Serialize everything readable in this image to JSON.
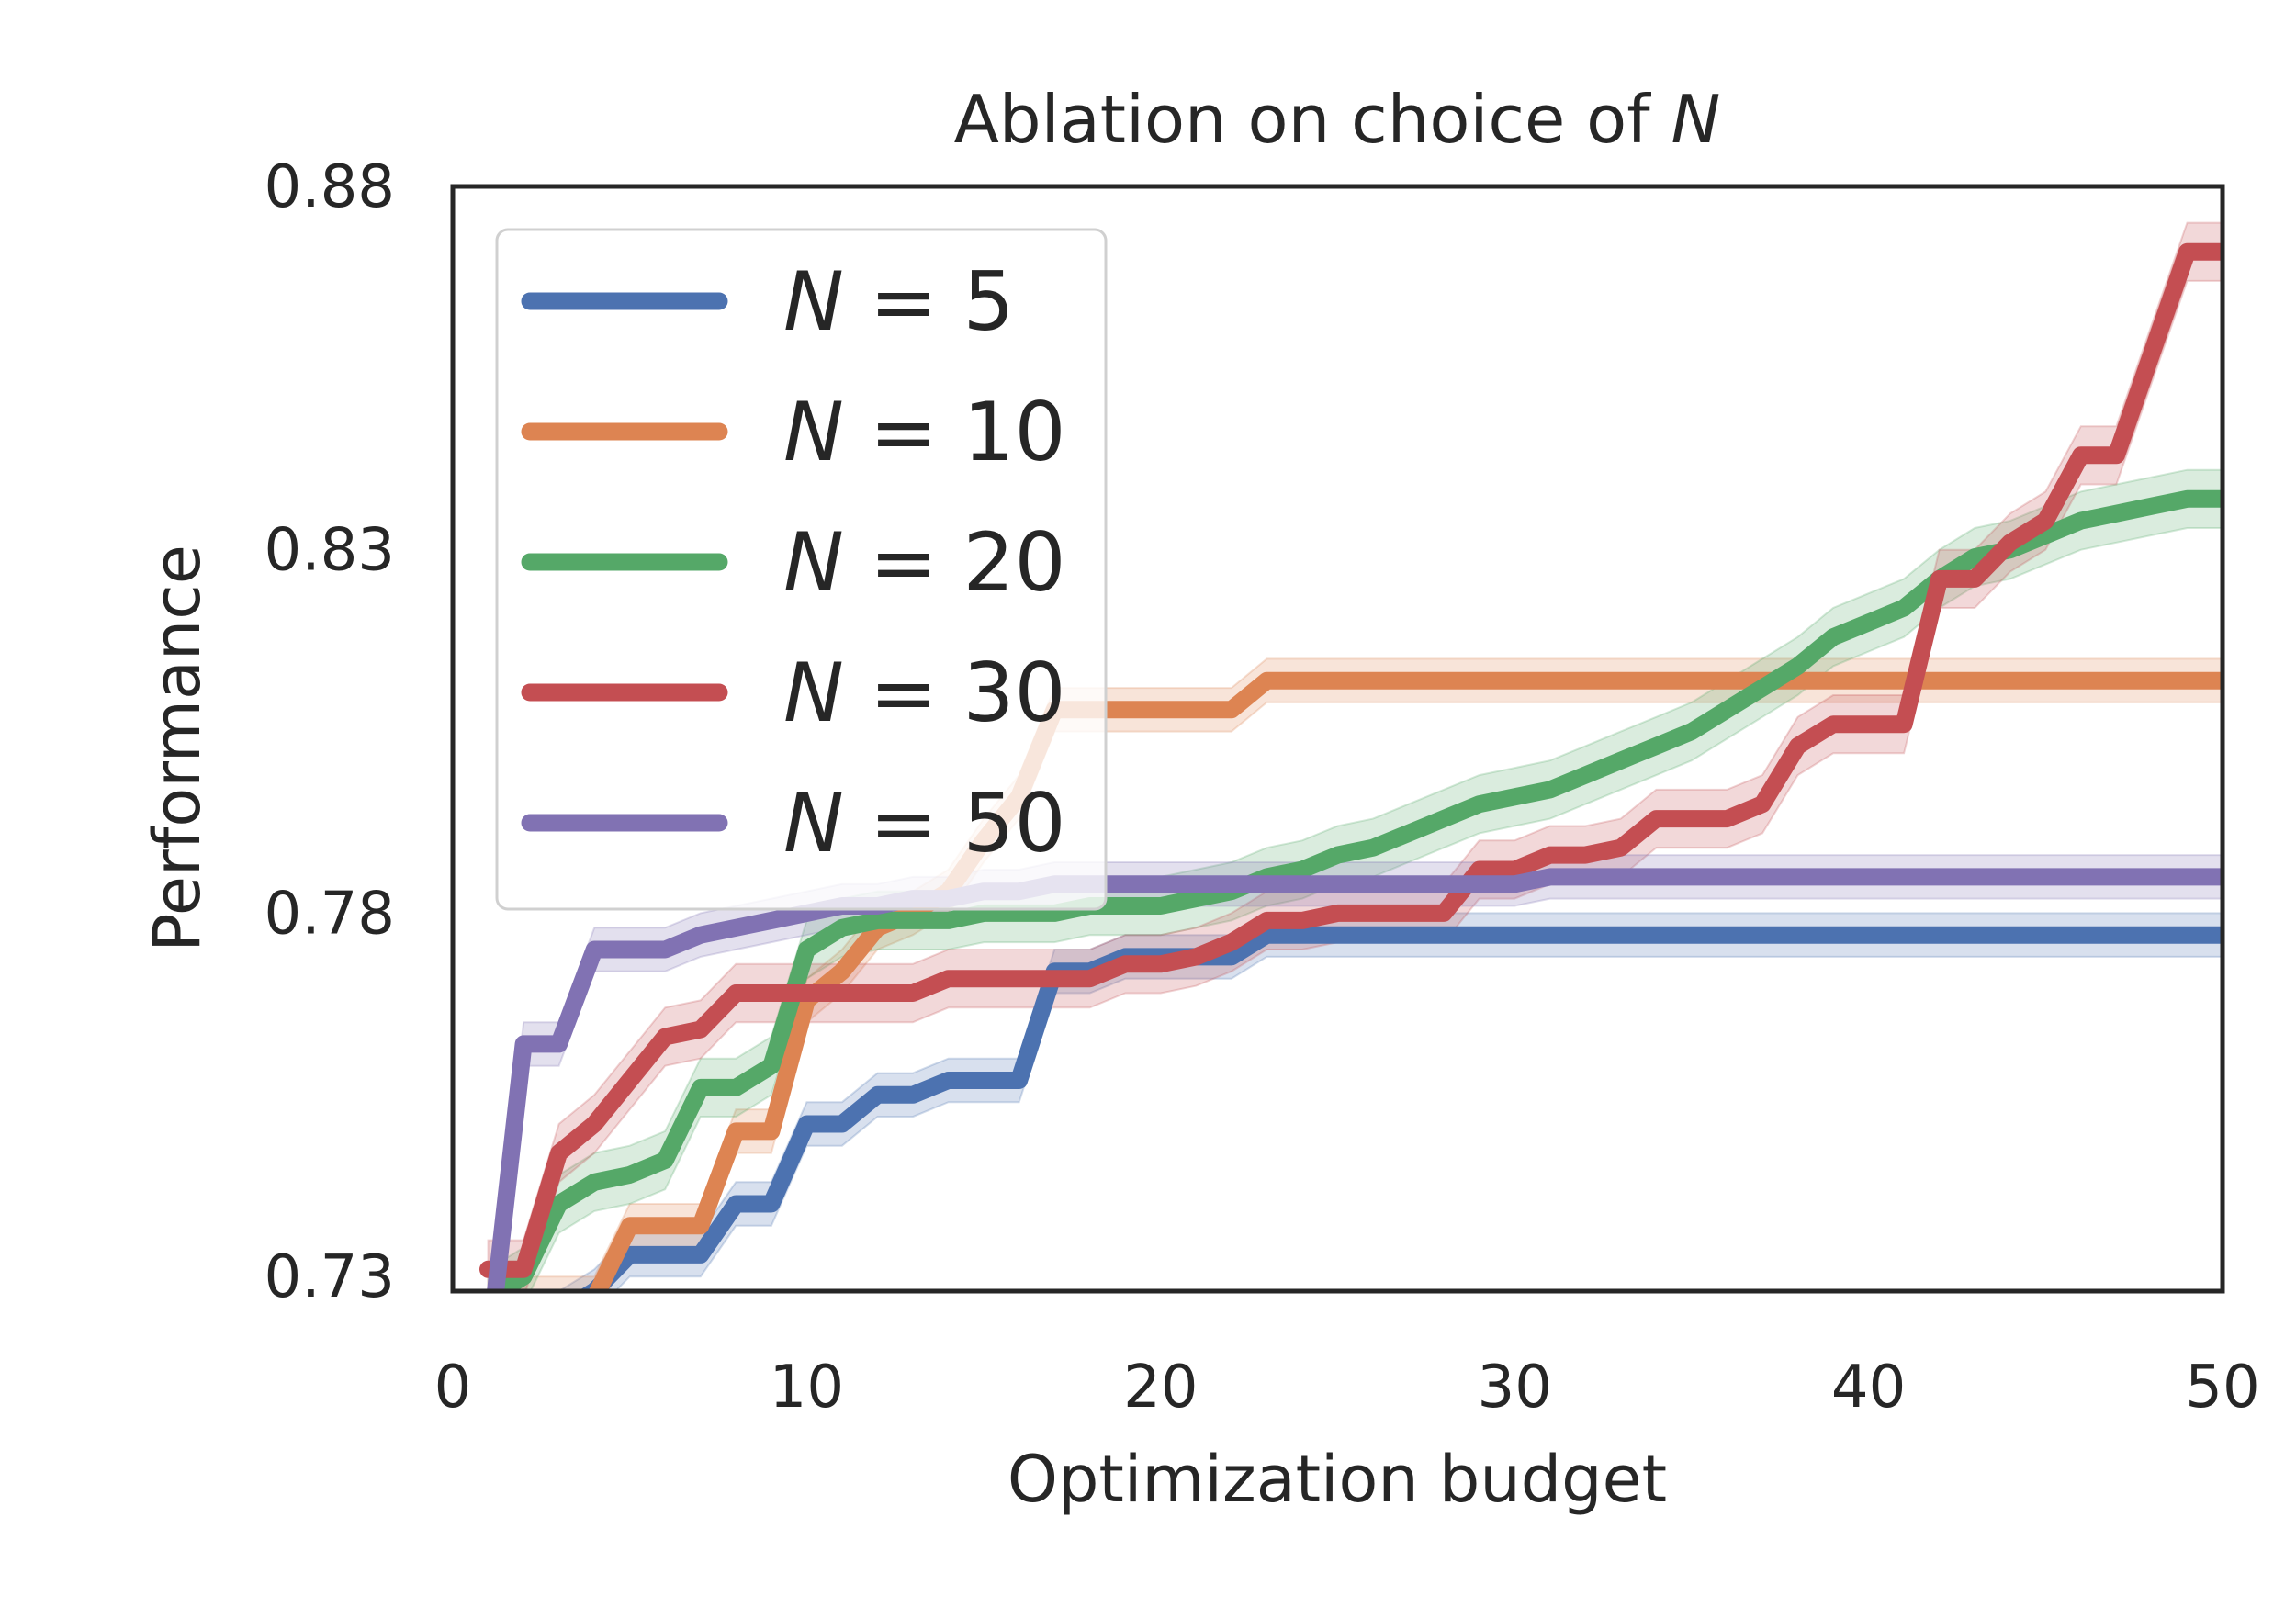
{
  "chart_data": {
    "type": "line",
    "title": "Ablation on choice of N",
    "title_prefix": "Ablation on choice of ",
    "title_var": "N",
    "xlabel": "Optimization budget",
    "ylabel": "Performance",
    "xlim": [
      0,
      50
    ],
    "ylim": [
      0.728,
      0.88
    ],
    "xticks": [
      0,
      10,
      20,
      30,
      40,
      50
    ],
    "xtick_labels": [
      "0",
      "10",
      "20",
      "30",
      "40",
      "50"
    ],
    "yticks": [
      0.73,
      0.78,
      0.83,
      0.88
    ],
    "ytick_labels": [
      "0.73",
      "0.78",
      "0.83",
      "0.88"
    ],
    "grid": false,
    "legend_position": "upper-left",
    "x": [
      1,
      2,
      3,
      4,
      5,
      6,
      7,
      8,
      9,
      10,
      11,
      12,
      13,
      14,
      15,
      16,
      17,
      18,
      19,
      20,
      21,
      22,
      23,
      24,
      25,
      26,
      27,
      28,
      29,
      30,
      31,
      32,
      33,
      34,
      35,
      36,
      37,
      38,
      39,
      40,
      41,
      42,
      43,
      44,
      45,
      46,
      47,
      48,
      49,
      50
    ],
    "series": [
      {
        "name": "N = 5",
        "var": "N",
        "eq": "= 5",
        "color": "#4c72b0",
        "values": [
          0.715,
          0.72,
          0.725,
          0.728,
          0.733,
          0.733,
          0.733,
          0.74,
          0.74,
          0.751,
          0.751,
          0.755,
          0.755,
          0.757,
          0.757,
          0.757,
          0.772,
          0.772,
          0.774,
          0.774,
          0.774,
          0.774,
          0.777,
          0.777,
          0.777,
          0.777,
          0.777,
          0.777,
          0.777,
          0.777,
          0.777,
          0.777,
          0.777,
          0.777,
          0.777,
          0.777,
          0.777,
          0.777,
          0.777,
          0.777,
          0.777,
          0.777,
          0.777,
          0.777,
          0.777,
          0.777,
          0.777,
          0.777,
          0.777,
          0.777
        ],
        "band": 0.003
      },
      {
        "name": "N = 10",
        "var": "N",
        "eq": "= 10",
        "color": "#dd8452",
        "values": [
          0.722,
          0.727,
          0.727,
          0.727,
          0.737,
          0.737,
          0.737,
          0.75,
          0.75,
          0.768,
          0.772,
          0.778,
          0.78,
          0.783,
          0.79,
          0.796,
          0.808,
          0.808,
          0.808,
          0.808,
          0.808,
          0.808,
          0.812,
          0.812,
          0.812,
          0.812,
          0.812,
          0.812,
          0.812,
          0.812,
          0.812,
          0.812,
          0.812,
          0.812,
          0.812,
          0.812,
          0.812,
          0.812,
          0.812,
          0.812,
          0.812,
          0.812,
          0.812,
          0.812,
          0.812,
          0.812,
          0.812,
          0.812,
          0.812,
          0.812
        ],
        "band": 0.003
      },
      {
        "name": "N = 20",
        "var": "N",
        "eq": "= 20",
        "color": "#55a868",
        "values": [
          0.727,
          0.73,
          0.74,
          0.743,
          0.744,
          0.746,
          0.756,
          0.756,
          0.759,
          0.775,
          0.778,
          0.779,
          0.779,
          0.779,
          0.78,
          0.78,
          0.78,
          0.781,
          0.781,
          0.781,
          0.782,
          0.783,
          0.785,
          0.786,
          0.788,
          0.789,
          0.791,
          0.793,
          0.795,
          0.796,
          0.797,
          0.799,
          0.801,
          0.803,
          0.805,
          0.808,
          0.811,
          0.814,
          0.818,
          0.82,
          0.822,
          0.826,
          0.829,
          0.83,
          0.832,
          0.834,
          0.835,
          0.836,
          0.837,
          0.837
        ],
        "band": 0.004
      },
      {
        "name": "N = 30",
        "var": "N",
        "eq": "= 30",
        "color": "#c44e52",
        "values": [
          0.731,
          0.731,
          0.747,
          0.751,
          0.757,
          0.763,
          0.764,
          0.769,
          0.769,
          0.769,
          0.769,
          0.769,
          0.769,
          0.771,
          0.771,
          0.771,
          0.771,
          0.771,
          0.773,
          0.773,
          0.774,
          0.776,
          0.779,
          0.779,
          0.78,
          0.78,
          0.78,
          0.78,
          0.786,
          0.786,
          0.788,
          0.788,
          0.789,
          0.793,
          0.793,
          0.793,
          0.795,
          0.803,
          0.806,
          0.806,
          0.806,
          0.826,
          0.826,
          0.831,
          0.834,
          0.843,
          0.843,
          0.857,
          0.871,
          0.871
        ],
        "band": 0.004
      },
      {
        "name": "N = 50",
        "var": "N",
        "eq": "= 50",
        "color": "#8172b3",
        "values": [
          0.719,
          0.762,
          0.762,
          0.775,
          0.775,
          0.775,
          0.777,
          0.778,
          0.779,
          0.78,
          0.781,
          0.781,
          0.782,
          0.782,
          0.783,
          0.783,
          0.784,
          0.784,
          0.784,
          0.784,
          0.784,
          0.784,
          0.784,
          0.784,
          0.784,
          0.784,
          0.784,
          0.784,
          0.784,
          0.784,
          0.785,
          0.785,
          0.785,
          0.785,
          0.785,
          0.785,
          0.785,
          0.785,
          0.785,
          0.785,
          0.785,
          0.785,
          0.785,
          0.785,
          0.785,
          0.785,
          0.785,
          0.785,
          0.785,
          0.785
        ],
        "band": 0.003
      }
    ]
  }
}
